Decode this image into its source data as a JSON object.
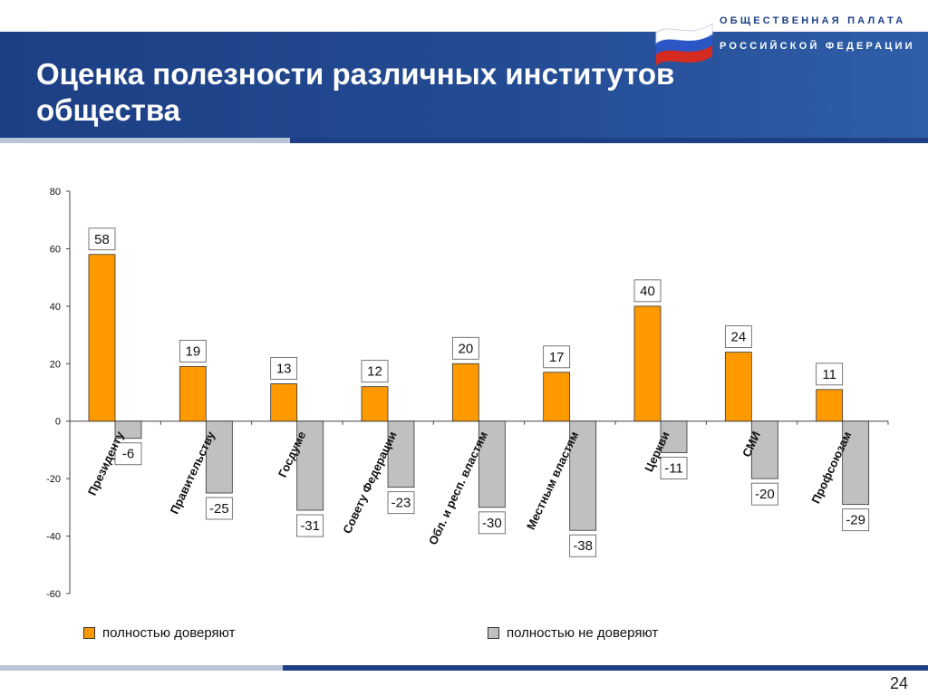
{
  "header": {
    "title_line1": "Оценка полезности различных институтов",
    "title_line2": "общества",
    "org_line1": "ОБЩЕСТВЕННАЯ ПАЛАТА",
    "org_line2": "РОССИЙСКОЙ ФЕДЕРАЦИИ",
    "logo_icon": "russian-flag-icon"
  },
  "footer": {
    "page_number": "24"
  },
  "colors": {
    "trust": "#ff9900",
    "distrust": "#c0c0c0",
    "header_blue": "#1d3f84"
  },
  "chart_data": {
    "type": "bar",
    "categories": [
      "Президенту",
      "Правительству",
      "Госдуме",
      "Совету Федерации",
      "Обл. и респ. властям",
      "Местным властям",
      "Церкви",
      "СМИ",
      "Профсоюзам"
    ],
    "series": [
      {
        "name": "полностью доверяют",
        "values": [
          58,
          19,
          13,
          12,
          20,
          17,
          40,
          24,
          11
        ]
      },
      {
        "name": "полностью не доверяют",
        "values": [
          -6,
          -25,
          -31,
          -23,
          -30,
          -38,
          -11,
          -20,
          -29
        ]
      }
    ],
    "ylim": [
      -60,
      80
    ],
    "yticks": [
      -60,
      -40,
      -20,
      0,
      20,
      40,
      60,
      80
    ],
    "grid": false,
    "legend": "bottom"
  }
}
